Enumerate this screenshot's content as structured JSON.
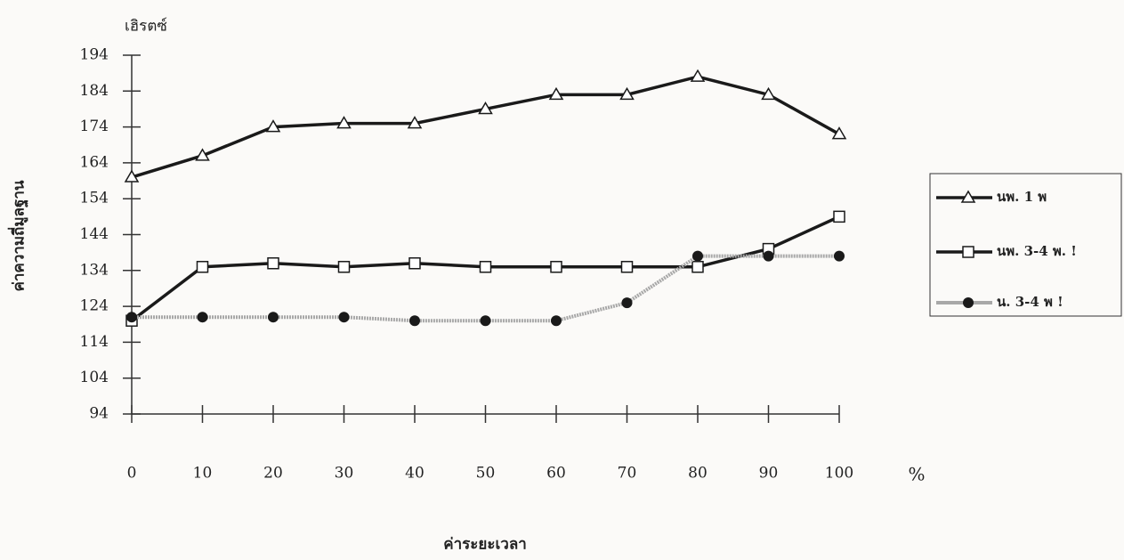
{
  "chart_data": {
    "type": "line",
    "y_unit": "เฮิรตซ์",
    "y_label": "ค่าความถี่มูลฐาน",
    "x_label": "ค่าระยะเวลา",
    "x_unit": "%",
    "x": [
      0,
      10,
      20,
      30,
      40,
      50,
      60,
      70,
      80,
      90,
      100
    ],
    "xlim": [
      0,
      100
    ],
    "xticks": [
      0,
      10,
      20,
      30,
      40,
      50,
      60,
      70,
      80,
      90,
      100
    ],
    "ylim": [
      94,
      194
    ],
    "yticks": [
      94,
      104,
      114,
      124,
      134,
      144,
      154,
      164,
      174,
      184,
      194
    ],
    "grid": false,
    "legend": "right",
    "series": [
      {
        "name": "นพ. 1 พ",
        "color": "#1a1a1a",
        "marker": "triangle",
        "values": [
          160,
          166,
          174,
          175,
          175,
          179,
          183,
          183,
          188,
          183,
          172
        ]
      },
      {
        "name": "นพ. 3-4 พ. !",
        "color": "#1a1a1a",
        "marker": "square",
        "values": [
          120,
          135,
          136,
          135,
          136,
          135,
          135,
          135,
          135,
          140,
          149
        ]
      },
      {
        "name": "น. 3-4 พ !",
        "color": "#a8a8a8",
        "marker": "dot",
        "values": [
          121,
          121,
          121,
          121,
          120,
          120,
          120,
          125,
          138,
          138,
          138
        ]
      }
    ]
  }
}
